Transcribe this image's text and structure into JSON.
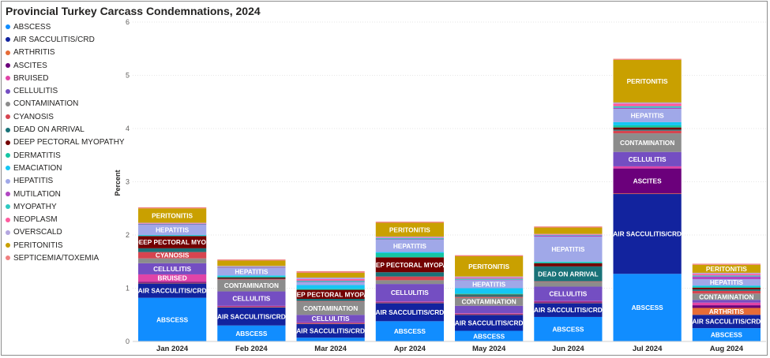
{
  "title": "Provincial Turkey Carcass Condemnations, 2024",
  "chart_data": {
    "type": "bar",
    "stacked": true,
    "title": "Provincial Turkey Carcass Condemnations, 2024",
    "xlabel": "",
    "ylabel": "Percent",
    "ylim": [
      0,
      6
    ],
    "yticks": [
      0,
      1,
      2,
      3,
      4,
      5,
      6
    ],
    "grid": true,
    "legend_position": "left",
    "categories": [
      "Jan 2024",
      "Feb 2024",
      "Mar 2024",
      "Apr 2024",
      "May 2024",
      "Jun 2024",
      "Jul 2024",
      "Aug 2024"
    ],
    "series": [
      {
        "name": "ABSCESS",
        "color": "#118DFF",
        "values": [
          0.82,
          0.3,
          0.07,
          0.38,
          0.2,
          0.46,
          1.27,
          0.25
        ]
      },
      {
        "name": "AIR SACCULITIS/CRD",
        "color": "#12239E",
        "values": [
          0.27,
          0.34,
          0.26,
          0.34,
          0.3,
          0.26,
          1.5,
          0.25
        ]
      },
      {
        "name": "ARTHRITIS",
        "color": "#E66C37",
        "values": [
          0.01,
          0.01,
          0.01,
          0.01,
          0.01,
          0.01,
          0.01,
          0.13
        ]
      },
      {
        "name": "ASCITES",
        "color": "#6B007B",
        "values": [
          0.02,
          0.01,
          0.01,
          0.01,
          0.01,
          0.02,
          0.47,
          0.05
        ]
      },
      {
        "name": "BRUISED",
        "color": "#E044A7",
        "values": [
          0.14,
          0.01,
          0.01,
          0.01,
          0.01,
          0.01,
          0.04,
          0.05
        ]
      },
      {
        "name": "CELLULITIS",
        "color": "#744EC2",
        "values": [
          0.21,
          0.27,
          0.14,
          0.33,
          0.14,
          0.27,
          0.27,
          0.05
        ]
      },
      {
        "name": "CONTAMINATION",
        "color": "#8C8C8C",
        "values": [
          0.09,
          0.22,
          0.25,
          0.07,
          0.15,
          0.09,
          0.35,
          0.12
        ]
      },
      {
        "name": "CYANOSIS",
        "color": "#D64550",
        "values": [
          0.12,
          0.01,
          0.01,
          0.07,
          0.02,
          0.01,
          0.05,
          0.05
        ]
      },
      {
        "name": "DEAD ON ARRIVAL",
        "color": "#197278",
        "values": [
          0.07,
          0.01,
          0.04,
          0.08,
          0.03,
          0.28,
          0.02,
          0.03
        ]
      },
      {
        "name": "DEEP PECTORAL MYOPATHY",
        "color": "#730000",
        "values": [
          0.23,
          0.02,
          0.17,
          0.28,
          0.01,
          0.06,
          0.04,
          0.03
        ]
      },
      {
        "name": "DERMATITIS",
        "color": "#15C6A4",
        "values": [
          0.01,
          0.02,
          0.02,
          0.08,
          0.02,
          0.02,
          0.04,
          0.02
        ]
      },
      {
        "name": "EMACIATION",
        "color": "#15C6F4",
        "values": [
          0.01,
          0.02,
          0.07,
          0.02,
          0.1,
          0.01,
          0.06,
          0.02
        ]
      },
      {
        "name": "HEPATITIS",
        "color": "#A0A8E8",
        "values": [
          0.19,
          0.14,
          0.05,
          0.23,
          0.15,
          0.47,
          0.25,
          0.12
        ]
      },
      {
        "name": "MUTILATION",
        "color": "#B146C2",
        "values": [
          0.01,
          0.01,
          0.01,
          0.01,
          0.01,
          0.02,
          0.02,
          0.05
        ]
      },
      {
        "name": "MYOPATHY",
        "color": "#2FC9C1",
        "values": [
          0.01,
          0.01,
          0.02,
          0.02,
          0.02,
          0.01,
          0.03,
          0.02
        ]
      },
      {
        "name": "NEOPLASM",
        "color": "#FF5B9E",
        "values": [
          0.01,
          0.01,
          0.03,
          0.01,
          0.02,
          0.01,
          0.05,
          0.03
        ]
      },
      {
        "name": "OVERSCALD",
        "color": "#B4A7E0",
        "values": [
          0.01,
          0.01,
          0.03,
          0.02,
          0.02,
          0.01,
          0.02,
          0.02
        ]
      },
      {
        "name": "PERITONITIS",
        "color": "#C9A000",
        "values": [
          0.27,
          0.1,
          0.09,
          0.26,
          0.38,
          0.12,
          0.8,
          0.15
        ]
      },
      {
        "name": "SEPTICEMIA/TOXEMIA",
        "color": "#F08080",
        "values": [
          0.02,
          0.02,
          0.03,
          0.02,
          0.02,
          0.02,
          0.02,
          0.02
        ]
      }
    ],
    "labeled_segments": [
      {
        "category": "Jan 2024",
        "series": "ABSCESS",
        "label": "ABSCESS"
      },
      {
        "category": "Jan 2024",
        "series": "DEEP PECTORAL MYOPATHY",
        "label": "DEEP PECTORAL MYOP"
      },
      {
        "category": "Jan 2024",
        "series": "AIR SACCULITIS/CRD",
        "label": "AIR SACCULITIS/CRD"
      },
      {
        "category": "Jan 2024",
        "series": "PERITONITIS",
        "label": "PERITONITIS"
      },
      {
        "category": "Jan 2024",
        "series": "CELLULITIS",
        "label": "CELLULITIS"
      },
      {
        "category": "Jan 2024",
        "series": "HEPATITIS",
        "label": "HEPATITIS"
      },
      {
        "category": "Jan 2024",
        "series": "BRUISED",
        "label": "BRUISED"
      },
      {
        "category": "Jan 2024",
        "series": "CYANOSIS",
        "label": "CYANOSIS"
      },
      {
        "category": "Feb 2024",
        "series": "AIR SACCULITIS/CRD",
        "label": "AIR SACCULITIS/CRD"
      },
      {
        "category": "Feb 2024",
        "series": "ABSCESS",
        "label": "ABSCESS"
      },
      {
        "category": "Feb 2024",
        "series": "CELLULITIS",
        "label": "CELLULITIS"
      },
      {
        "category": "Feb 2024",
        "series": "CONTAMINATION",
        "label": "CONTAMINATION"
      },
      {
        "category": "Feb 2024",
        "series": "HEPATITIS",
        "label": "HEPATITIS"
      },
      {
        "category": "Mar 2024",
        "series": "AIR SACCULITIS/CRD",
        "label": "AIR SACCULITIS/CRD"
      },
      {
        "category": "Mar 2024",
        "series": "CONTAMINATION",
        "label": "CONTAMINATION"
      },
      {
        "category": "Mar 2024",
        "series": "CELLULITIS",
        "label": "CELLULITIS"
      },
      {
        "category": "Mar 2024",
        "series": "DEEP PECTORAL MYOPATHY",
        "label": "DEEP PECTORAL MYOPA..."
      },
      {
        "category": "Apr 2024",
        "series": "ABSCESS",
        "label": "ABSCESS"
      },
      {
        "category": "Apr 2024",
        "series": "AIR SACCULITIS/CRD",
        "label": "AIR SACCULITIS/CRD"
      },
      {
        "category": "Apr 2024",
        "series": "CELLULITIS",
        "label": "CELLULITIS"
      },
      {
        "category": "Apr 2024",
        "series": "DEEP PECTORAL MYOPATHY",
        "label": "DEEP PECTORAL MYOPA..."
      },
      {
        "category": "Apr 2024",
        "series": "PERITONITIS",
        "label": "PERITONITIS"
      },
      {
        "category": "Apr 2024",
        "series": "HEPATITIS",
        "label": "HEPATITIS"
      },
      {
        "category": "May 2024",
        "series": "PERITONITIS",
        "label": "PERITONITIS"
      },
      {
        "category": "May 2024",
        "series": "AIR SACCULITIS/CRD",
        "label": "AIR SACCULITIS/CRD"
      },
      {
        "category": "May 2024",
        "series": "CONTAMINATION",
        "label": "CONTAMINATION"
      },
      {
        "category": "May 2024",
        "series": "ABSCESS",
        "label": "ABSCESS"
      },
      {
        "category": "May 2024",
        "series": "HEPATITIS",
        "label": "HEPATITIS"
      },
      {
        "category": "Jun 2024",
        "series": "ABSCESS",
        "label": "ABSCESS"
      },
      {
        "category": "Jun 2024",
        "series": "HEPATITIS",
        "label": "HEPATITIS"
      },
      {
        "category": "Jun 2024",
        "series": "CELLULITIS",
        "label": "CELLULITIS"
      },
      {
        "category": "Jun 2024",
        "series": "DEAD ON ARRIVAL",
        "label": "DEAD ON ARRIVAL"
      },
      {
        "category": "Jun 2024",
        "series": "AIR SACCULITIS/CRD",
        "label": "AIR SACCULITIS/CRD"
      },
      {
        "category": "Jul 2024",
        "series": "AIR SACCULITIS/CRD",
        "label": "AIR SACCULITIS/CRD"
      },
      {
        "category": "Jul 2024",
        "series": "ABSCESS",
        "label": "ABSCESS"
      },
      {
        "category": "Jul 2024",
        "series": "PERITONITIS",
        "label": "PERITONITIS"
      },
      {
        "category": "Jul 2024",
        "series": "ASCITES",
        "label": "ASCITES"
      },
      {
        "category": "Jul 2024",
        "series": "CONTAMINATION",
        "label": "CONTAMINATION"
      },
      {
        "category": "Jul 2024",
        "series": "CELLULITIS",
        "label": "CELLULITIS"
      },
      {
        "category": "Jul 2024",
        "series": "HEPATITIS",
        "label": "HEPATITIS"
      },
      {
        "category": "Aug 2024",
        "series": "ABSCESS",
        "label": "ABSCESS"
      },
      {
        "category": "Aug 2024",
        "series": "AIR SACCULITIS/CRD",
        "label": "AIR SACCULITIS/CRD"
      },
      {
        "category": "Aug 2024",
        "series": "ARTHRITIS",
        "label": "ARTHRITIS"
      },
      {
        "category": "Aug 2024",
        "series": "PERITONITIS",
        "label": "PERITONITIS"
      },
      {
        "category": "Aug 2024",
        "series": "CONTAMINATION",
        "label": "CONTAMINATION"
      },
      {
        "category": "Aug 2024",
        "series": "HEPATITIS",
        "label": "HEPATITIS"
      }
    ]
  }
}
